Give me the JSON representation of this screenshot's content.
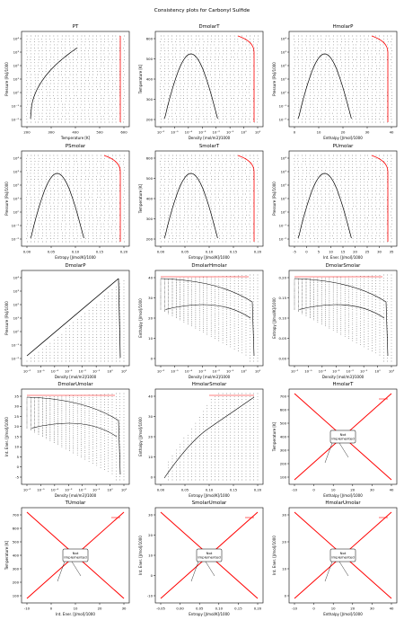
{
  "suptitle": "Consistency plots for Carbonyl Sulfide",
  "not_implemented": "Not\nImplemented",
  "colors": {
    "dots": "#000000",
    "line": "#000000",
    "red": "#ff0000"
  },
  "chart_data": [
    {
      "type": "scatter",
      "title": "PT",
      "xlabel": "Temperature [K]",
      "ylabel": "Pressure [Pa]/1000",
      "xlim": [
        100,
        720
      ],
      "xticks": [
        "200",
        "300",
        "400",
        "500",
        "600"
      ],
      "yscale": "log",
      "yticks": [
        "10⁻²",
        "10⁻¹",
        "10⁰",
        "10¹",
        "10²",
        "10³",
        "10⁴"
      ],
      "curve": "saturation",
      "implemented": true
    },
    {
      "type": "scatter",
      "title": "DmolarT",
      "xlabel": "Density [mol/m3]/1000",
      "ylabel": "Temperature [K]",
      "xscale": "log",
      "xticks": [
        "10⁻⁶",
        "10⁻⁵",
        "10⁻⁴",
        "10⁻³",
        "10⁻²",
        "10⁻¹",
        "10⁰",
        "10¹"
      ],
      "yticks": [
        "200",
        "300",
        "400",
        "500",
        "600"
      ],
      "curve": "dome",
      "implemented": true
    },
    {
      "type": "scatter",
      "title": "HmolarP",
      "xlabel": "Enthalpy [J/mol]/1000",
      "ylabel": "Pressure [Pa]/1000",
      "xticks": [
        "0",
        "10",
        "20",
        "30",
        "40"
      ],
      "yscale": "log",
      "yticks": [
        "10⁻²",
        "10⁻¹",
        "10⁰",
        "10¹",
        "10²",
        "10³",
        "10⁴"
      ],
      "curve": "dome",
      "implemented": true
    },
    {
      "type": "scatter",
      "title": "PSmolar",
      "xlabel": "Entropy [J/mol/K]/1000",
      "ylabel": "Pressure [Pa]/1000",
      "xticks": [
        "0.00",
        "0.05",
        "0.10",
        "0.15",
        "0.20"
      ],
      "yscale": "log",
      "yticks": [
        "10⁻²",
        "10⁻¹",
        "10⁰",
        "10¹",
        "10²",
        "10³",
        "10⁴"
      ],
      "curve": "dome",
      "implemented": true
    },
    {
      "type": "scatter",
      "title": "SmolarT",
      "xlabel": "Entropy [J/mol/K]/1000",
      "ylabel": "Temperature [K]",
      "xticks": [
        "0.00",
        "0.05",
        "0.10",
        "0.15",
        "0.20"
      ],
      "yticks": [
        "200",
        "300",
        "400",
        "500",
        "600"
      ],
      "curve": "dome",
      "implemented": true
    },
    {
      "type": "scatter",
      "title": "PUmolar",
      "xlabel": "Int. Ener. [J/mol]/1000",
      "ylabel": "Pressure [Pa]/1000",
      "xticks": [
        "-5",
        "0",
        "5",
        "10",
        "15",
        "20",
        "25",
        "30",
        "35"
      ],
      "yscale": "log",
      "yticks": [
        "10⁻²",
        "10⁻¹",
        "10⁰",
        "10¹",
        "10²",
        "10³",
        "10⁴"
      ],
      "curve": "dome",
      "implemented": true
    },
    {
      "type": "scatter",
      "title": "DmolarP",
      "xlabel": "Density [mol/m3]/1000",
      "ylabel": "Pressure [Pa]/1000",
      "xscale": "log",
      "xticks": [
        "10⁻⁶",
        "10⁻⁵",
        "10⁻⁴",
        "10⁻³",
        "10⁻²",
        "10⁻¹",
        "10⁰",
        "10¹"
      ],
      "yscale": "log",
      "yticks": [
        "10⁻²",
        "10⁻¹",
        "10⁰",
        "10¹",
        "10²",
        "10³",
        "10⁴"
      ],
      "curve": "ridge",
      "implemented": true
    },
    {
      "type": "scatter",
      "title": "DmolarHmolar",
      "xlabel": "Density [mol/m3]/1000",
      "ylabel": "Enthalpy [J/mol]/1000",
      "xscale": "log",
      "xticks": [
        "10⁻⁶",
        "10⁻⁵",
        "10⁻⁴",
        "10⁻³",
        "10⁻²",
        "10⁻¹",
        "10⁰",
        "10¹"
      ],
      "yticks": [
        "0",
        "10",
        "20",
        "30",
        "40"
      ],
      "curve": "fan",
      "implemented": true
    },
    {
      "type": "scatter",
      "title": "DmolarSmolar",
      "xlabel": "Density [mol/m3]/1000",
      "ylabel": "Entropy [J/mol/K]/1000",
      "xscale": "log",
      "xticks": [
        "10⁻⁶",
        "10⁻⁵",
        "10⁻⁴",
        "10⁻³",
        "10⁻²",
        "10⁻¹",
        "10⁰",
        "10¹"
      ],
      "yticks": [
        "0.00",
        "0.05",
        "0.10",
        "0.15",
        "0.20"
      ],
      "curve": "fan",
      "implemented": true
    },
    {
      "type": "scatter",
      "title": "DmolarUmolar",
      "xlabel": "Density [mol/m3]/1000",
      "ylabel": "Int. Ener. [J/mol]/1000",
      "xscale": "log",
      "xticks": [
        "10⁻⁶",
        "10⁻⁵",
        "10⁻⁴",
        "10⁻³",
        "10⁻²",
        "10⁻¹",
        "10⁰",
        "10¹"
      ],
      "yticks": [
        "-5",
        "0",
        "5",
        "10",
        "15",
        "20",
        "25",
        "30",
        "35"
      ],
      "curve": "fan",
      "implemented": true
    },
    {
      "type": "scatter",
      "title": "HmolarSmolar",
      "xlabel": "Entropy [J/mol/K]/1000",
      "ylabel": "Enthalpy [J/mol]/1000",
      "xticks": [
        "0.00",
        "0.05",
        "0.10",
        "0.15",
        "0.20"
      ],
      "yticks": [
        "0",
        "10",
        "20",
        "30",
        "40"
      ],
      "curve": "hs",
      "implemented": true
    },
    {
      "type": "line",
      "title": "HmolarT",
      "xlabel": "Enthalpy [J/mol]/1000",
      "ylabel": "Temperature [K]",
      "xticks": [
        "-10",
        "0",
        "10",
        "20",
        "30",
        "40"
      ],
      "yticks": [
        "100",
        "200",
        "300",
        "400",
        "500",
        "600",
        "700"
      ],
      "curve": "x",
      "implemented": false
    },
    {
      "type": "line",
      "title": "TUmolar",
      "xlabel": "Int. Ener. [J/mol]/1000",
      "ylabel": "Temperature [K]",
      "xticks": [
        "-10",
        "0",
        "10",
        "20",
        "30"
      ],
      "yticks": [
        "100",
        "200",
        "300",
        "400",
        "500",
        "600",
        "700"
      ],
      "curve": "x",
      "implemented": false
    },
    {
      "type": "line",
      "title": "SmolarUmolar",
      "xlabel": "Entropy [J/mol/K]/1000",
      "ylabel": "Int. Ener. [J/mol]/1000",
      "xticks": [
        "-0.05",
        "0.00",
        "0.05",
        "0.10",
        "0.15",
        "0.20"
      ],
      "yticks": [
        "-10",
        "0",
        "10",
        "20",
        "30"
      ],
      "curve": "x",
      "implemented": false
    },
    {
      "type": "line",
      "title": "HmolarUmolar",
      "xlabel": "Enthalpy [J/mol]/1000",
      "ylabel": "Int. Ener. [J/mol]/1000",
      "xticks": [
        "-10",
        "0",
        "10",
        "20",
        "30",
        "40"
      ],
      "yticks": [
        "0",
        "10",
        "20",
        "30"
      ],
      "curve": "x",
      "implemented": false
    }
  ]
}
